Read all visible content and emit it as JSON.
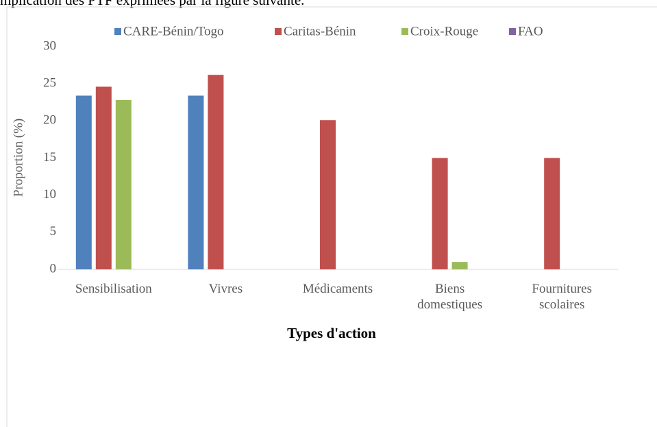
{
  "page_text": "mplication des PTF exprimées par la figure suivante.",
  "chart_data": {
    "type": "bar",
    "y_label": "Proportion (%)",
    "x_label": "Types d'action",
    "categories": [
      "Sensibilisation",
      "Vivres",
      "Médicaments",
      "Biens domestiques",
      "Fournitures scolaires"
    ],
    "series": [
      {
        "name": "CARE-Bénin/Togo",
        "color": "#4f81bd",
        "values": [
          23.4,
          23.4,
          0,
          0,
          0
        ]
      },
      {
        "name": "Caritas-Bénin",
        "color": "#c0504d",
        "values": [
          24.6,
          26.2,
          20.1,
          15.0,
          15.0
        ]
      },
      {
        "name": "Croix-Rouge",
        "color": "#9bbb59",
        "values": [
          22.8,
          0,
          0,
          1.0,
          0
        ]
      },
      {
        "name": "FAO",
        "color": "#8064a2",
        "values": [
          0,
          0,
          0,
          0,
          0
        ]
      }
    ],
    "ylim": [
      0,
      30
    ],
    "yticks": [
      0,
      5,
      10,
      15,
      20,
      25,
      30
    ],
    "legend": "top",
    "grid": false
  }
}
